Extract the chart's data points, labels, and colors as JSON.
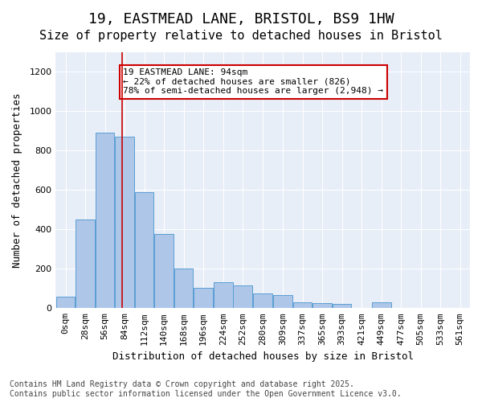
{
  "title_line1": "19, EASTMEAD LANE, BRISTOL, BS9 1HW",
  "title_line2": "Size of property relative to detached houses in Bristol",
  "xlabel": "Distribution of detached houses by size in Bristol",
  "ylabel": "Number of detached properties",
  "bar_color": "#aec6e8",
  "bar_edge_color": "#5a9fd4",
  "background_color": "#e8eef8",
  "annotation_box_text": "19 EASTMEAD LANE: 94sqm\n← 22% of detached houses are smaller (826)\n78% of semi-detached houses are larger (2,948) →",
  "annotation_box_color": "#cc0000",
  "vline_x": 94,
  "vline_color": "#cc0000",
  "property_size": 94,
  "categories": [
    "0sqm",
    "28sqm",
    "56sqm",
    "84sqm",
    "112sqm",
    "140sqm",
    "168sqm",
    "196sqm",
    "224sqm",
    "252sqm",
    "280sqm",
    "309sqm",
    "337sqm",
    "365sqm",
    "393sqm",
    "421sqm",
    "449sqm",
    "477sqm",
    "505sqm",
    "533sqm",
    "561sqm"
  ],
  "bin_edges": [
    0,
    28,
    56,
    84,
    112,
    140,
    168,
    196,
    224,
    252,
    280,
    309,
    337,
    365,
    393,
    421,
    449,
    477,
    505,
    533,
    561
  ],
  "bar_heights": [
    60,
    450,
    890,
    870,
    590,
    375,
    200,
    105,
    130,
    115,
    75,
    65,
    30,
    25,
    20,
    0,
    28,
    0,
    0,
    0,
    0
  ],
  "ylim": [
    0,
    1300
  ],
  "yticks": [
    0,
    200,
    400,
    600,
    800,
    1000,
    1200
  ],
  "footnote": "Contains HM Land Registry data © Crown copyright and database right 2025.\nContains public sector information licensed under the Open Government Licence v3.0.",
  "title_fontsize": 13,
  "subtitle_fontsize": 11,
  "axis_label_fontsize": 9,
  "tick_fontsize": 8,
  "annotation_fontsize": 8,
  "footnote_fontsize": 7
}
